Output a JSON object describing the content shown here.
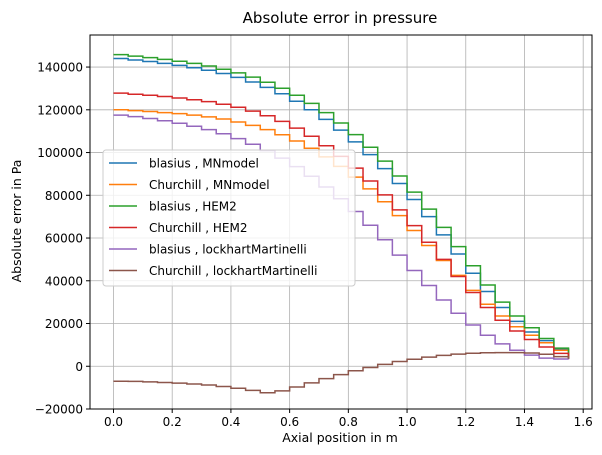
{
  "chart_data": {
    "type": "line",
    "step": true,
    "title": "Absolute error in pressure",
    "xlabel": "Axial position in m",
    "ylabel": "Absolute error in Pa",
    "xlim": [
      -0.08,
      1.63
    ],
    "ylim": [
      -20000,
      155000
    ],
    "xticks": [
      0.0,
      0.2,
      0.4,
      0.6,
      0.8,
      1.0,
      1.2,
      1.4,
      1.6
    ],
    "xtick_labels": [
      "0.0",
      "0.2",
      "0.4",
      "0.6",
      "0.8",
      "1.0",
      "1.2",
      "1.4",
      "1.6"
    ],
    "yticks": [
      -20000,
      0,
      20000,
      40000,
      60000,
      80000,
      100000,
      120000,
      140000
    ],
    "ytick_labels": [
      "−20000",
      "0",
      "20000",
      "40000",
      "60000",
      "80000",
      "100000",
      "120000",
      "140000"
    ],
    "grid": true,
    "legend_position": "center-left",
    "x": [
      0.0,
      0.05,
      0.1,
      0.15,
      0.2,
      0.25,
      0.3,
      0.35,
      0.4,
      0.45,
      0.5,
      0.55,
      0.6,
      0.65,
      0.7,
      0.75,
      0.8,
      0.85,
      0.9,
      0.95,
      1.0,
      1.05,
      1.1,
      1.15,
      1.2,
      1.25,
      1.3,
      1.35,
      1.4,
      1.45,
      1.5,
      1.55
    ],
    "series": [
      {
        "name": "blasius , MNmodel",
        "color": "#1f77b4",
        "values": [
          144000,
          143300,
          142600,
          141700,
          140800,
          139700,
          138500,
          137000,
          135200,
          133000,
          130500,
          127500,
          124000,
          120000,
          115500,
          110500,
          105000,
          99000,
          92500,
          85500,
          78000,
          70000,
          61500,
          52500,
          43500,
          35000,
          27500,
          21000,
          16000,
          12000,
          8000,
          3500
        ]
      },
      {
        "name": "Churchill , MNmodel",
        "color": "#ff7f0e",
        "values": [
          120000,
          119600,
          119200,
          118700,
          118200,
          117500,
          116700,
          115700,
          114300,
          112700,
          110700,
          108300,
          105400,
          102000,
          98000,
          93500,
          88500,
          83000,
          77000,
          70500,
          63500,
          56500,
          49500,
          42500,
          35500,
          29000,
          23500,
          18500,
          14500,
          11000,
          7500,
          3500
        ]
      },
      {
        "name": "blasius , HEM2",
        "color": "#2ca02c",
        "values": [
          145800,
          145100,
          144400,
          143600,
          142700,
          141700,
          140500,
          139000,
          137300,
          135300,
          132900,
          130100,
          126800,
          123000,
          118700,
          113800,
          108400,
          102500,
          96000,
          89000,
          81500,
          73500,
          65000,
          56000,
          47000,
          38000,
          30000,
          23500,
          18000,
          13000,
          8500,
          3500
        ]
      },
      {
        "name": "Churchill , HEM2",
        "color": "#d62728",
        "values": [
          127800,
          127300,
          126800,
          126200,
          125500,
          124700,
          123800,
          122600,
          121200,
          119400,
          117200,
          114600,
          111400,
          107600,
          103200,
          98200,
          92700,
          86700,
          80200,
          73200,
          65800,
          58000,
          50000,
          42000,
          34500,
          27500,
          21500,
          16500,
          12500,
          9000,
          6000,
          3500
        ]
      },
      {
        "name": "blasius , lockhartMartinelli",
        "color": "#9467bd",
        "values": [
          117500,
          116800,
          115900,
          114900,
          113700,
          112300,
          110700,
          108800,
          106500,
          103900,
          100900,
          97400,
          93400,
          88900,
          83900,
          78400,
          72400,
          66000,
          59200,
          52000,
          44800,
          37800,
          31000,
          24800,
          19300,
          14500,
          10500,
          7500,
          5200,
          3800,
          3400,
          3200
        ]
      },
      {
        "name": "Churchill , lockhartMartinelli",
        "color": "#8c564b",
        "values": [
          -7000,
          -7100,
          -7300,
          -7600,
          -7900,
          -8300,
          -8800,
          -9500,
          -10300,
          -11300,
          -12400,
          -11500,
          -9700,
          -7800,
          -5800,
          -3900,
          -2100,
          -600,
          900,
          2200,
          3300,
          4300,
          5100,
          5700,
          6100,
          6300,
          6400,
          6400,
          6200,
          5600,
          4500,
          3500
        ]
      }
    ]
  }
}
